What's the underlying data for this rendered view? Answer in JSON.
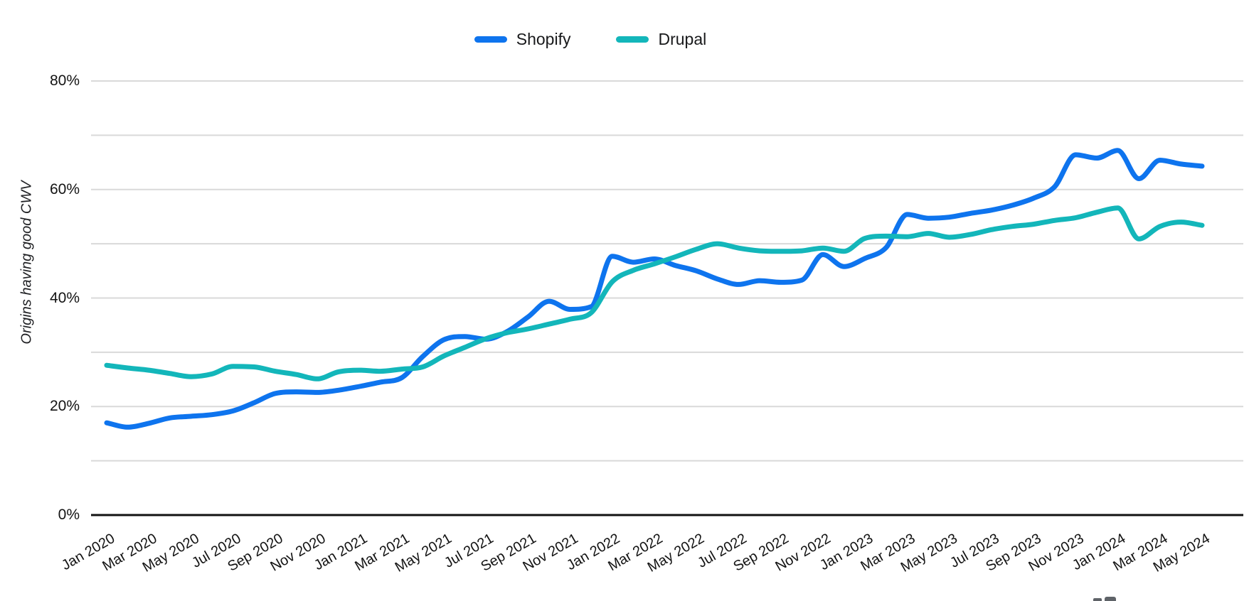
{
  "legend": {
    "items": [
      {
        "label": "Shopify",
        "color": "#0e74ee"
      },
      {
        "label": "Drupal",
        "color": "#13b6ba"
      }
    ]
  },
  "y_axis": {
    "title": "Origins having good CWV",
    "tick_labels": [
      "0%",
      "20%",
      "40%",
      "60%",
      "80%"
    ],
    "tick_values": [
      0,
      20,
      40,
      60,
      80
    ]
  },
  "x_axis": {
    "visible_tick_labels": [
      "Jan 2020",
      "Mar 2020",
      "May 2020",
      "Jul 2020",
      "Sep 2020",
      "Nov 2020",
      "Jan 2021",
      "Mar 2021",
      "May 2021",
      "Jul 2021",
      "Sep 2021",
      "Nov 2021",
      "Jan 2022",
      "Mar 2022",
      "May 2022",
      "Jul 2022",
      "Sep 2022",
      "Nov 2022",
      "Jan 2023",
      "Mar 2023",
      "May 2023",
      "Jul 2023",
      "Sep 2023",
      "Nov 2023",
      "Jan 2024",
      "Mar 2024",
      "May 2024"
    ]
  },
  "chart_data": {
    "type": "line",
    "title": "",
    "xlabel": "",
    "ylabel": "Origins having good CWV",
    "ylim": [
      0,
      80
    ],
    "grid_step": 10,
    "grid_on": true,
    "legend_position": "top-center",
    "colors": {
      "grid": "#d9d9d9",
      "axis": "#111111",
      "text": "#131313"
    },
    "categories": [
      "Jan 2020",
      "Feb 2020",
      "Mar 2020",
      "Apr 2020",
      "May 2020",
      "Jun 2020",
      "Jul 2020",
      "Aug 2020",
      "Sep 2020",
      "Oct 2020",
      "Nov 2020",
      "Dec 2020",
      "Jan 2021",
      "Feb 2021",
      "Mar 2021",
      "Apr 2021",
      "May 2021",
      "Jun 2021",
      "Jul 2021",
      "Aug 2021",
      "Sep 2021",
      "Oct 2021",
      "Nov 2021",
      "Dec 2021",
      "Jan 2022",
      "Feb 2022",
      "Mar 2022",
      "Apr 2022",
      "May 2022",
      "Jun 2022",
      "Jul 2022",
      "Aug 2022",
      "Sep 2022",
      "Oct 2022",
      "Nov 2022",
      "Dec 2022",
      "Jan 2023",
      "Feb 2023",
      "Mar 2023",
      "Apr 2023",
      "May 2023",
      "Jun 2023",
      "Jul 2023",
      "Aug 2023",
      "Sep 2023",
      "Oct 2023",
      "Nov 2023",
      "Dec 2023",
      "Jan 2024",
      "Feb 2024",
      "Mar 2024",
      "Apr 2024",
      "May 2024"
    ],
    "series": [
      {
        "name": "Shopify",
        "color": "#0e74ee",
        "values": [
          17.0,
          16.2,
          16.9,
          17.9,
          18.2,
          18.5,
          19.2,
          20.7,
          22.4,
          22.7,
          22.6,
          23.0,
          23.7,
          24.5,
          25.3,
          29.2,
          32.3,
          32.9,
          32.4,
          33.8,
          36.5,
          39.4,
          37.9,
          38.4,
          47.7,
          46.6,
          47.2,
          46.0,
          45.0,
          43.5,
          42.5,
          43.2,
          42.9,
          43.3,
          48.0,
          45.8,
          47.3,
          49.3,
          55.4,
          54.7,
          54.9,
          55.6,
          56.2,
          57.1,
          58.4,
          60.5,
          66.4,
          65.8,
          67.2,
          62.0,
          65.4,
          64.7,
          64.3
        ]
      },
      {
        "name": "Drupal",
        "color": "#13b6ba",
        "values": [
          27.6,
          27.1,
          26.7,
          26.1,
          25.5,
          26.0,
          27.4,
          27.3,
          26.5,
          25.9,
          25.1,
          26.4,
          26.7,
          26.5,
          26.9,
          27.3,
          29.3,
          30.9,
          32.5,
          33.6,
          34.3,
          35.2,
          36.1,
          37.3,
          43.0,
          45.1,
          46.3,
          47.6,
          49.0,
          50.0,
          49.2,
          48.7,
          48.6,
          48.7,
          49.2,
          48.6,
          51.0,
          51.4,
          51.3,
          51.9,
          51.2,
          51.7,
          52.6,
          53.2,
          53.6,
          54.3,
          54.8,
          55.8,
          56.6,
          50.9,
          53.2,
          54.0,
          53.4
        ]
      }
    ]
  },
  "decorations": {
    "bottom_right_partial_icons": 2
  }
}
